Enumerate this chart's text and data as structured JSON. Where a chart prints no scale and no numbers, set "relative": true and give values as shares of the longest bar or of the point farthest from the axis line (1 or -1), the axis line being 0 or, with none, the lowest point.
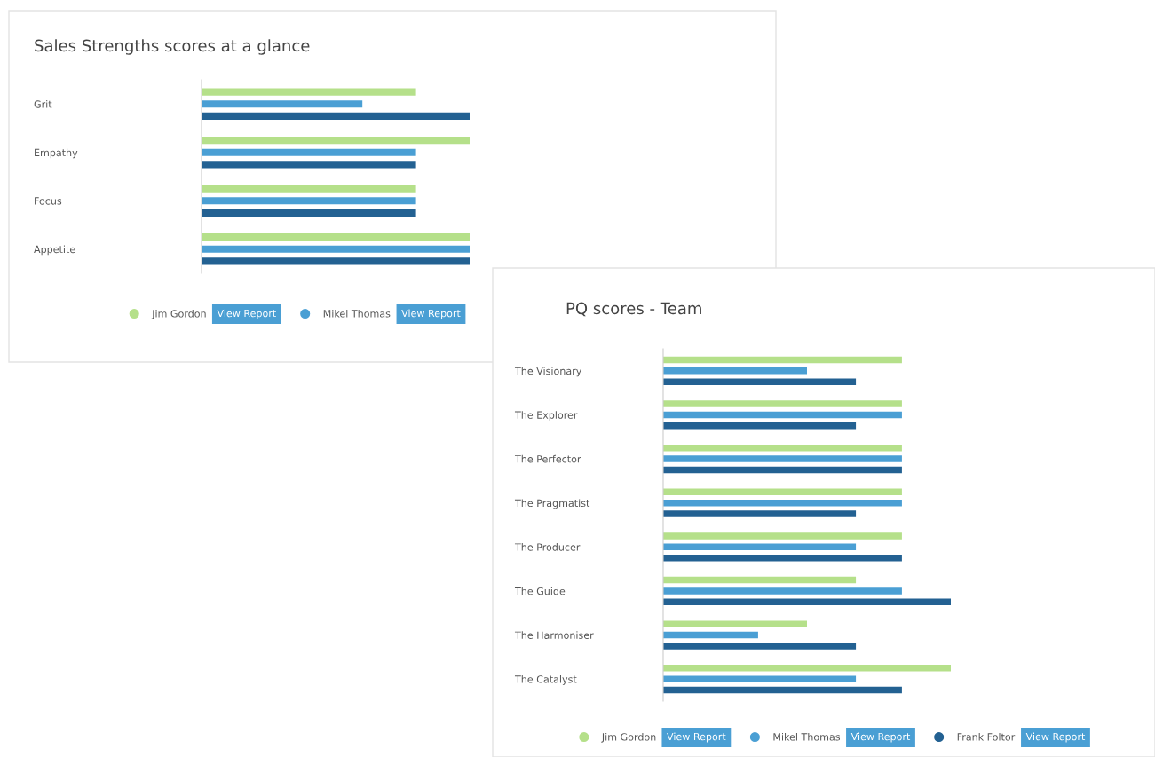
{
  "chart_data": [
    {
      "type": "bar",
      "orientation": "horizontal",
      "relative": true,
      "title": "Sales Strengths scores at a glance",
      "categories": [
        "Grit",
        "Empathy",
        "Focus",
        "Appetite"
      ],
      "series": [
        {
          "name": "Jim Gordon",
          "color": "#b5e08a",
          "values": [
            0.8,
            1,
            0.8,
            1
          ]
        },
        {
          "name": "Mikel Thomas",
          "color": "#4a9fd4",
          "values": [
            0.6,
            0.8,
            0.8,
            1
          ]
        },
        {
          "color": "#236192",
          "values": [
            1,
            0.8,
            0.8,
            1
          ]
        }
      ],
      "legend": "bottom",
      "annotations": [
        "View Report",
        "View Report"
      ]
    },
    {
      "type": "bar",
      "orientation": "horizontal",
      "relative": true,
      "title": "PQ scores - Team",
      "categories": [
        "The Visionary",
        "The Explorer",
        "The Perfector",
        "The Pragmatist",
        "The Producer",
        "The Guide",
        "The Harmoniser",
        "The Catalyst"
      ],
      "series": [
        {
          "name": "Jim Gordon",
          "color": "#b5e08a",
          "values": [
            0.83,
            0.83,
            0.83,
            0.83,
            0.83,
            0.67,
            0.5,
            1
          ]
        },
        {
          "name": "Mikel Thomas",
          "color": "#4a9fd4",
          "values": [
            0.5,
            0.83,
            0.83,
            0.83,
            0.67,
            0.83,
            0.33,
            0.67
          ]
        },
        {
          "name": "Frank Foltor",
          "color": "#236192",
          "values": [
            0.67,
            0.67,
            0.83,
            0.67,
            0.83,
            1,
            0.67,
            0.83
          ]
        }
      ],
      "legend": "bottom",
      "annotations": [
        "View Report",
        "View Report",
        "View Report"
      ]
    }
  ]
}
